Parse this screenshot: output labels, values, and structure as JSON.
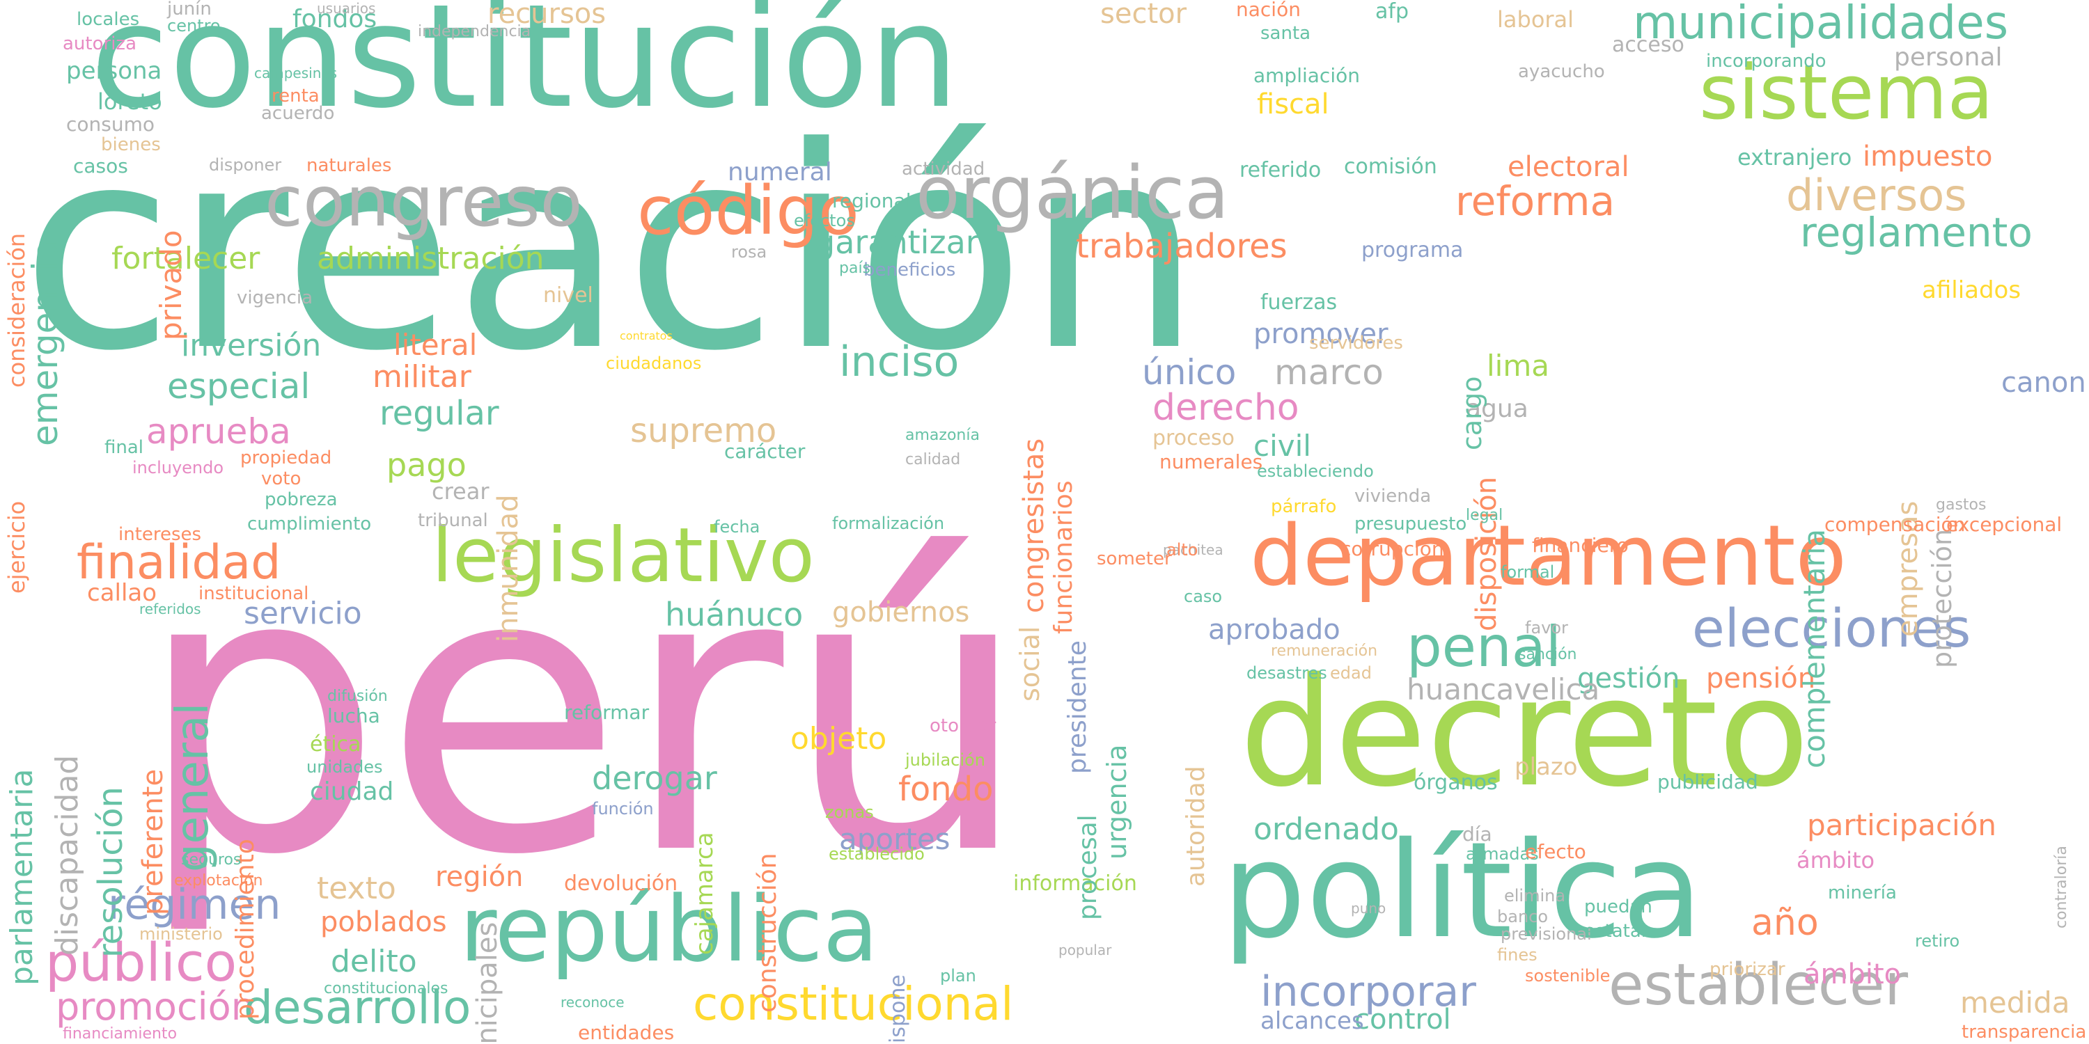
{
  "palette": {
    "teal": "#66c2a5",
    "orange": "#fc8d62",
    "blue": "#8da0cb",
    "pink": "#e78ac3",
    "green": "#a6d854",
    "yellow": "#ffd92f",
    "tan": "#e5c494",
    "gray": "#b3b3b3"
  },
  "words": [
    {
      "text": "creación",
      "color": "teal"
    },
    {
      "text": "perú",
      "color": "pink"
    },
    {
      "text": "constitución",
      "color": "teal"
    },
    {
      "text": "decreto",
      "color": "green"
    },
    {
      "text": "política",
      "color": "teal"
    },
    {
      "text": "departamento",
      "color": "orange"
    },
    {
      "text": "república",
      "color": "teal"
    },
    {
      "text": "legislativo",
      "color": "green"
    },
    {
      "text": "sistema",
      "color": "green"
    },
    {
      "text": "orgánica",
      "color": "gray"
    },
    {
      "text": "código",
      "color": "orange"
    },
    {
      "text": "congreso",
      "color": "gray"
    },
    {
      "text": "establecer",
      "color": "gray"
    },
    {
      "text": "municipalidades",
      "color": "teal"
    },
    {
      "text": "elecciones",
      "color": "blue"
    },
    {
      "text": "penal",
      "color": "teal"
    },
    {
      "text": "reglamento",
      "color": "teal"
    },
    {
      "text": "diversos",
      "color": "tan"
    },
    {
      "text": "reforma",
      "color": "orange"
    },
    {
      "text": "finalidad",
      "color": "orange"
    },
    {
      "text": "garantizar",
      "color": "teal"
    },
    {
      "text": "trabajadores",
      "color": "orange"
    },
    {
      "text": "administración",
      "color": "green"
    },
    {
      "text": "fortalecer",
      "color": "green"
    },
    {
      "text": "inversión",
      "color": "teal"
    },
    {
      "text": "especial",
      "color": "teal"
    },
    {
      "text": "inciso",
      "color": "teal"
    },
    {
      "text": "aprueba",
      "color": "pink"
    },
    {
      "text": "público",
      "color": "pink"
    },
    {
      "text": "promoción",
      "color": "pink"
    },
    {
      "text": "régimen",
      "color": "blue"
    },
    {
      "text": "desarrollo",
      "color": "teal"
    },
    {
      "text": "constitucional",
      "color": "yellow"
    },
    {
      "text": "incorporar",
      "color": "blue"
    },
    {
      "text": "participación",
      "color": "orange"
    },
    {
      "text": "derecho",
      "color": "pink"
    },
    {
      "text": "marco",
      "color": "gray"
    },
    {
      "text": "único",
      "color": "blue"
    },
    {
      "text": "regular",
      "color": "teal"
    },
    {
      "text": "militar",
      "color": "orange"
    },
    {
      "text": "literal",
      "color": "orange"
    },
    {
      "text": "pago",
      "color": "green"
    },
    {
      "text": "supremo",
      "color": "tan"
    },
    {
      "text": "servicio",
      "color": "blue"
    },
    {
      "text": "huánuco",
      "color": "teal"
    },
    {
      "text": "gobiernos",
      "color": "tan"
    },
    {
      "text": "aprobado",
      "color": "blue"
    },
    {
      "text": "gestión",
      "color": "teal"
    },
    {
      "text": "pensión",
      "color": "orange"
    },
    {
      "text": "huancavelica",
      "color": "gray"
    },
    {
      "text": "ordenado",
      "color": "teal"
    },
    {
      "text": "objeto",
      "color": "yellow"
    },
    {
      "text": "derogar",
      "color": "teal"
    },
    {
      "text": "fondo",
      "color": "orange"
    },
    {
      "text": "aportes",
      "color": "blue"
    },
    {
      "text": "región",
      "color": "orange"
    },
    {
      "text": "poblados",
      "color": "orange"
    },
    {
      "text": "texto",
      "color": "tan"
    },
    {
      "text": "delito",
      "color": "teal"
    },
    {
      "text": "devolución",
      "color": "orange"
    },
    {
      "text": "información",
      "color": "green"
    },
    {
      "text": "control",
      "color": "teal"
    },
    {
      "text": "alcances",
      "color": "blue"
    },
    {
      "text": "medida",
      "color": "tan"
    },
    {
      "text": "año",
      "color": "orange"
    },
    {
      "text": "ámbito",
      "color": "pink"
    },
    {
      "text": "lima",
      "color": "green"
    },
    {
      "text": "agua",
      "color": "gray"
    },
    {
      "text": "civil",
      "color": "teal"
    },
    {
      "text": "promover",
      "color": "blue"
    },
    {
      "text": "electoral",
      "color": "orange"
    },
    {
      "text": "impuesto",
      "color": "orange"
    },
    {
      "text": "afiliados",
      "color": "yellow"
    },
    {
      "text": "canon",
      "color": "blue"
    },
    {
      "text": "fiscal",
      "color": "yellow"
    },
    {
      "text": "comisión",
      "color": "teal"
    },
    {
      "text": "numeral",
      "color": "blue"
    },
    {
      "text": "programa",
      "color": "blue"
    },
    {
      "text": "personal",
      "color": "gray"
    },
    {
      "text": "sector",
      "color": "tan"
    },
    {
      "text": "fondos",
      "color": "teal"
    },
    {
      "text": "recursos",
      "color": "tan"
    },
    {
      "text": "laboral",
      "color": "tan"
    },
    {
      "text": "persona",
      "color": "teal"
    },
    {
      "text": "loreto",
      "color": "teal"
    },
    {
      "text": "privado",
      "color": "orange"
    },
    {
      "text": "emergencia",
      "color": "teal"
    },
    {
      "text": "parlamentaria",
      "color": "teal"
    },
    {
      "text": "discapacidad",
      "color": "gray"
    },
    {
      "text": "resolución",
      "color": "teal"
    },
    {
      "text": "general",
      "color": "teal"
    },
    {
      "text": "preferente",
      "color": "orange"
    },
    {
      "text": "social",
      "color": "tan"
    },
    {
      "text": "congresistas",
      "color": "orange"
    },
    {
      "text": "funcionarios",
      "color": "orange"
    },
    {
      "text": "inmunidad",
      "color": "tan"
    },
    {
      "text": "disposición",
      "color": "orange"
    },
    {
      "text": "cargo",
      "color": "teal"
    },
    {
      "text": "complementaria",
      "color": "teal"
    },
    {
      "text": "empresas",
      "color": "tan"
    },
    {
      "text": "protección",
      "color": "gray"
    },
    {
      "text": "municipales",
      "color": "gray"
    },
    {
      "text": "procesal",
      "color": "teal"
    },
    {
      "text": "urgencia",
      "color": "teal"
    },
    {
      "text": "presidente",
      "color": "blue"
    },
    {
      "text": "autoridad",
      "color": "tan"
    },
    {
      "text": "construcción",
      "color": "orange"
    },
    {
      "text": "cajamarca",
      "color": "green"
    },
    {
      "text": "procedimiento",
      "color": "orange"
    },
    {
      "text": "ciudad",
      "color": "teal"
    },
    {
      "text": "callao",
      "color": "orange"
    },
    {
      "text": "ámbito",
      "color": "pink"
    },
    {
      "text": "consideración",
      "color": "orange"
    },
    {
      "text": "ejercicio",
      "color": "orange"
    },
    {
      "text": "naturales",
      "color": "orange"
    },
    {
      "text": "regional",
      "color": "teal"
    },
    {
      "text": "vivienda",
      "color": "gray"
    },
    {
      "text": "nivel",
      "color": "tan"
    },
    {
      "text": "servidores",
      "color": "tan"
    },
    {
      "text": "fuerzas",
      "color": "teal"
    },
    {
      "text": "referido",
      "color": "teal"
    },
    {
      "text": "ayacucho",
      "color": "gray"
    },
    {
      "text": "incorporando",
      "color": "teal"
    },
    {
      "text": "acceso",
      "color": "gray"
    },
    {
      "text": "extranjero",
      "color": "teal"
    },
    {
      "text": "afp",
      "color": "teal"
    },
    {
      "text": "nación",
      "color": "orange"
    },
    {
      "text": "santa",
      "color": "teal"
    },
    {
      "text": "ampliación",
      "color": "teal"
    },
    {
      "text": "locales",
      "color": "teal"
    },
    {
      "text": "junín",
      "color": "gray"
    },
    {
      "text": "centro",
      "color": "teal"
    },
    {
      "text": "autoriza",
      "color": "pink"
    },
    {
      "text": "consumo",
      "color": "gray"
    },
    {
      "text": "bienes",
      "color": "tan"
    },
    {
      "text": "casos",
      "color": "teal"
    },
    {
      "text": "renta",
      "color": "orange"
    },
    {
      "text": "acuerdo",
      "color": "gray"
    },
    {
      "text": "campesinas",
      "color": "teal"
    },
    {
      "text": "disponer",
      "color": "gray"
    },
    {
      "text": "actividad",
      "color": "gray"
    },
    {
      "text": "efectos",
      "color": "teal"
    },
    {
      "text": "beneficios",
      "color": "blue"
    },
    {
      "text": "país",
      "color": "teal"
    },
    {
      "text": "rosa",
      "color": "gray"
    },
    {
      "text": "ciudadanos",
      "color": "yellow"
    },
    {
      "text": "contratos",
      "color": "yellow"
    },
    {
      "text": "amazonía",
      "color": "teal"
    },
    {
      "text": "carácter",
      "color": "teal"
    },
    {
      "text": "calidad",
      "color": "gray"
    },
    {
      "text": "proceso",
      "color": "tan"
    },
    {
      "text": "numerales",
      "color": "orange"
    },
    {
      "text": "estableciendo",
      "color": "teal"
    },
    {
      "text": "párrafo",
      "color": "yellow"
    },
    {
      "text": "presupuesto",
      "color": "teal"
    },
    {
      "text": "corrupción",
      "color": "orange"
    },
    {
      "text": "financiero",
      "color": "orange"
    },
    {
      "text": "compensación",
      "color": "orange"
    },
    {
      "text": "excepcional",
      "color": "orange"
    },
    {
      "text": "crear",
      "color": "gray"
    },
    {
      "text": "tribunal",
      "color": "gray"
    },
    {
      "text": "cumplimiento",
      "color": "teal"
    },
    {
      "text": "intereses",
      "color": "orange"
    },
    {
      "text": "pobreza",
      "color": "teal"
    },
    {
      "text": "voto",
      "color": "orange"
    },
    {
      "text": "propiedad",
      "color": "orange"
    },
    {
      "text": "incluyendo",
      "color": "pink"
    },
    {
      "text": "final",
      "color": "teal"
    },
    {
      "text": "vigencia",
      "color": "gray"
    },
    {
      "text": "fecha",
      "color": "teal"
    },
    {
      "text": "formalización",
      "color": "teal"
    },
    {
      "text": "someter",
      "color": "orange"
    },
    {
      "text": "pachitea",
      "color": "gray"
    },
    {
      "text": "alto",
      "color": "orange"
    },
    {
      "text": "caso",
      "color": "teal"
    },
    {
      "text": "desastres",
      "color": "teal"
    },
    {
      "text": "remuneración",
      "color": "tan"
    },
    {
      "text": "edad",
      "color": "tan"
    },
    {
      "text": "favor",
      "color": "gray"
    },
    {
      "text": "sanción",
      "color": "teal"
    },
    {
      "text": "formal",
      "color": "teal"
    },
    {
      "text": "otorgar",
      "color": "pink"
    },
    {
      "text": "jubilación",
      "color": "green"
    },
    {
      "text": "reformar",
      "color": "teal"
    },
    {
      "text": "lucha",
      "color": "teal"
    },
    {
      "text": "ética",
      "color": "green"
    },
    {
      "text": "unidades",
      "color": "teal"
    },
    {
      "text": "difusión",
      "color": "teal"
    },
    {
      "text": "función",
      "color": "blue"
    },
    {
      "text": "zonas",
      "color": "green"
    },
    {
      "text": "establecido",
      "color": "green"
    },
    {
      "text": "plazo",
      "color": "tan"
    },
    {
      "text": "órganos",
      "color": "teal"
    },
    {
      "text": "publicidad",
      "color": "teal"
    },
    {
      "text": "día",
      "color": "gray"
    },
    {
      "text": "armadas",
      "color": "teal"
    },
    {
      "text": "efecto",
      "color": "orange"
    },
    {
      "text": "elimina",
      "color": "gray"
    },
    {
      "text": "banco",
      "color": "gray"
    },
    {
      "text": "previsional",
      "color": "gray"
    },
    {
      "text": "puedan",
      "color": "teal"
    },
    {
      "text": "estatal",
      "color": "teal"
    },
    {
      "text": "minería",
      "color": "teal"
    },
    {
      "text": "retiro",
      "color": "teal"
    },
    {
      "text": "transparencia",
      "color": "orange"
    },
    {
      "text": "seguros",
      "color": "teal"
    },
    {
      "text": "explotación",
      "color": "orange"
    },
    {
      "text": "ministerio",
      "color": "tan"
    },
    {
      "text": "financiamiento",
      "color": "pink"
    },
    {
      "text": "constitucionales",
      "color": "teal"
    },
    {
      "text": "entidades",
      "color": "orange"
    },
    {
      "text": "reconoce",
      "color": "teal"
    },
    {
      "text": "popular",
      "color": "gray"
    },
    {
      "text": "plan",
      "color": "teal"
    },
    {
      "text": "sostenible",
      "color": "orange"
    },
    {
      "text": "fines",
      "color": "tan"
    },
    {
      "text": "priorizar",
      "color": "tan"
    },
    {
      "text": "contraloría",
      "color": "gray"
    },
    {
      "text": "dispone",
      "color": "blue"
    },
    {
      "text": "puno",
      "color": "gray"
    },
    {
      "text": "gastos",
      "color": "gray"
    },
    {
      "text": "legal",
      "color": "teal"
    },
    {
      "text": "institucional",
      "color": "orange"
    },
    {
      "text": "referidos",
      "color": "teal"
    },
    {
      "text": "usuarios",
      "color": "gray"
    },
    {
      "text": "independencia",
      "color": "gray"
    }
  ]
}
